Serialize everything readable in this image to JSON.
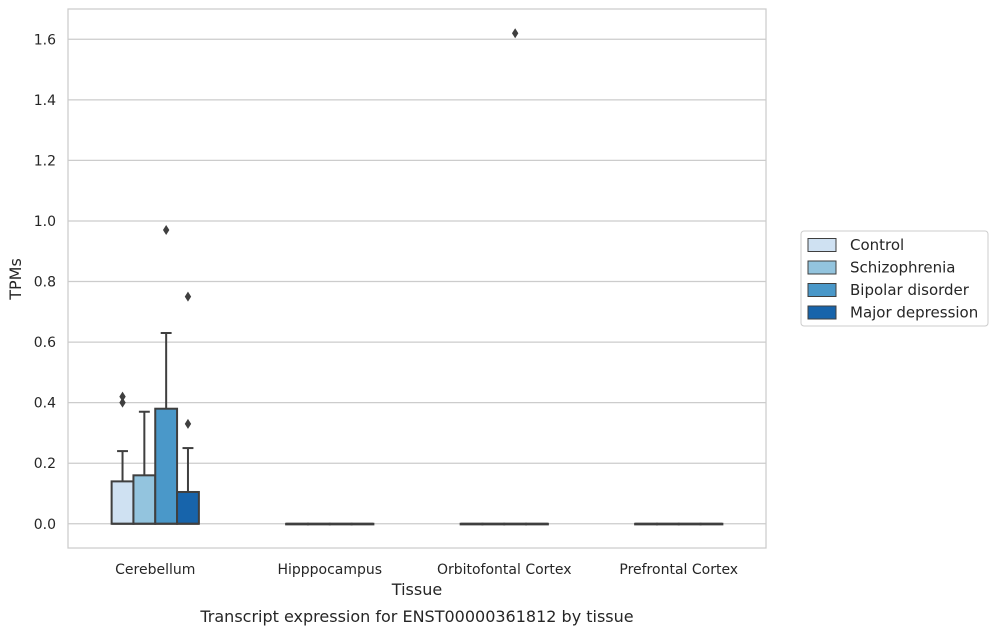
{
  "chart_data": {
    "type": "box",
    "title": "",
    "caption": "Transcript expression for ENST00000361812 by tissue",
    "xlabel": "Tissue",
    "ylabel": "TPMs",
    "ylim": [
      -0.08,
      1.7
    ],
    "yticks": [
      "0.0",
      "0.2",
      "0.4",
      "0.6",
      "0.8",
      "1.0",
      "1.2",
      "1.4",
      "1.6"
    ],
    "grid": true,
    "legend_position": "right",
    "categories": [
      "Cerebellum",
      "Hipppocampus",
      "Orbitofontal Cortex",
      "Prefrontal Cortex"
    ],
    "series": [
      {
        "name": "Control",
        "color": "#cfe1f2",
        "boxes": [
          {
            "q1": 0.0,
            "median": 0.0,
            "q3": 0.14,
            "whisker_low": 0.0,
            "whisker_high": 0.24,
            "outliers": [
              0.4,
              0.42
            ]
          },
          {
            "q1": 0.0,
            "median": 0.0,
            "q3": 0.0,
            "whisker_low": 0.0,
            "whisker_high": 0.0,
            "outliers": []
          },
          {
            "q1": 0.0,
            "median": 0.0,
            "q3": 0.0,
            "whisker_low": 0.0,
            "whisker_high": 0.0,
            "outliers": []
          },
          {
            "q1": 0.0,
            "median": 0.0,
            "q3": 0.0,
            "whisker_low": 0.0,
            "whisker_high": 0.0,
            "outliers": []
          }
        ]
      },
      {
        "name": "Schizophrenia",
        "color": "#93c4de",
        "boxes": [
          {
            "q1": 0.0,
            "median": 0.0,
            "q3": 0.16,
            "whisker_low": 0.0,
            "whisker_high": 0.37,
            "outliers": []
          },
          {
            "q1": 0.0,
            "median": 0.0,
            "q3": 0.0,
            "whisker_low": 0.0,
            "whisker_high": 0.0,
            "outliers": []
          },
          {
            "q1": 0.0,
            "median": 0.0,
            "q3": 0.0,
            "whisker_low": 0.0,
            "whisker_high": 0.0,
            "outliers": []
          },
          {
            "q1": 0.0,
            "median": 0.0,
            "q3": 0.0,
            "whisker_low": 0.0,
            "whisker_high": 0.0,
            "outliers": []
          }
        ]
      },
      {
        "name": "Bipolar disorder",
        "color": "#4a98c9",
        "boxes": [
          {
            "q1": 0.0,
            "median": 0.0,
            "q3": 0.38,
            "whisker_low": 0.0,
            "whisker_high": 0.63,
            "outliers": [
              0.97
            ]
          },
          {
            "q1": 0.0,
            "median": 0.0,
            "q3": 0.0,
            "whisker_low": 0.0,
            "whisker_high": 0.0,
            "outliers": []
          },
          {
            "q1": 0.0,
            "median": 0.0,
            "q3": 0.0,
            "whisker_low": 0.0,
            "whisker_high": 0.0,
            "outliers": [
              1.62
            ]
          },
          {
            "q1": 0.0,
            "median": 0.0,
            "q3": 0.0,
            "whisker_low": 0.0,
            "whisker_high": 0.0,
            "outliers": []
          }
        ]
      },
      {
        "name": "Major depression",
        "color": "#1764ab",
        "boxes": [
          {
            "q1": 0.0,
            "median": 0.0,
            "q3": 0.105,
            "whisker_low": 0.0,
            "whisker_high": 0.25,
            "outliers": [
              0.33,
              0.75
            ]
          },
          {
            "q1": 0.0,
            "median": 0.0,
            "q3": 0.0,
            "whisker_low": 0.0,
            "whisker_high": 0.0,
            "outliers": []
          },
          {
            "q1": 0.0,
            "median": 0.0,
            "q3": 0.0,
            "whisker_low": 0.0,
            "whisker_high": 0.0,
            "outliers": []
          },
          {
            "q1": 0.0,
            "median": 0.0,
            "q3": 0.0,
            "whisker_low": 0.0,
            "whisker_high": 0.0,
            "outliers": []
          }
        ]
      }
    ]
  }
}
